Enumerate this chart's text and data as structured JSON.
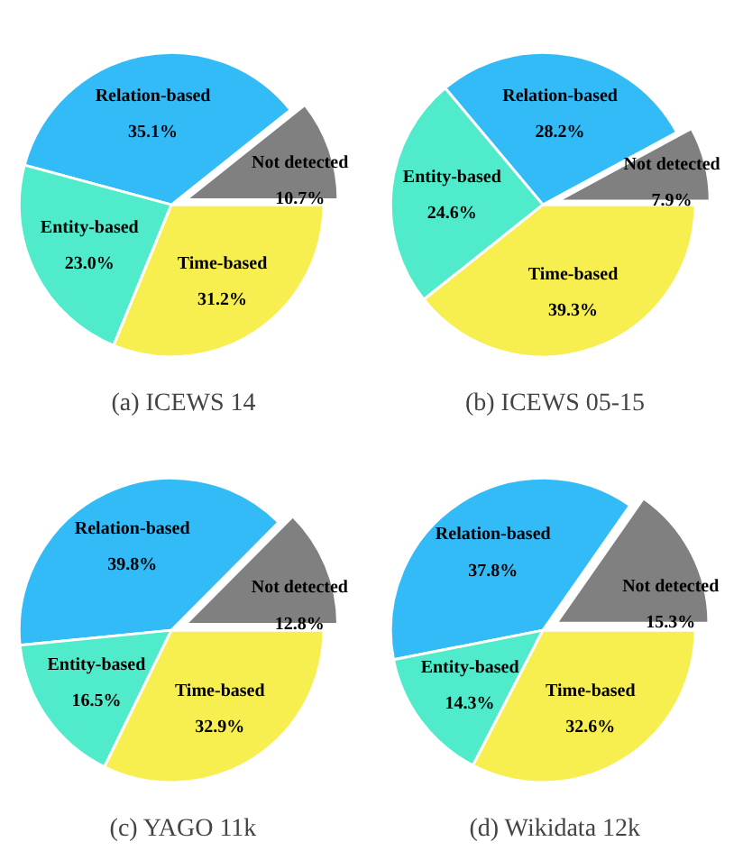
{
  "chart_data": [
    {
      "type": "pie",
      "title": "(a)  ICEWS 14",
      "categories": [
        "Not detected",
        "Relation-based",
        "Entity-based",
        "Time-based"
      ],
      "values": [
        10.7,
        35.1,
        23.0,
        31.2
      ],
      "value_labels": [
        "10.7%",
        "35.1%",
        "23.0%",
        "31.2%"
      ],
      "colors": [
        "#808080",
        "#33bbf7",
        "#50ebcb",
        "#f7ee50"
      ]
    },
    {
      "type": "pie",
      "title": "(b)  ICEWS 05-15",
      "categories": [
        "Not detected",
        "Relation-based",
        "Entity-based",
        "Time-based"
      ],
      "values": [
        7.9,
        28.2,
        24.6,
        39.3
      ],
      "value_labels": [
        "7.9%",
        "28.2%",
        "24.6%",
        "39.3%"
      ],
      "colors": [
        "#808080",
        "#33bbf7",
        "#50ebcb",
        "#f7ee50"
      ]
    },
    {
      "type": "pie",
      "title": "(c)  YAGO 11k",
      "categories": [
        "Not detected",
        "Relation-based",
        "Entity-based",
        "Time-based"
      ],
      "values": [
        12.8,
        39.8,
        16.5,
        32.9
      ],
      "value_labels": [
        "12.8%",
        "39.8%",
        "16.5%",
        "32.9%"
      ],
      "colors": [
        "#808080",
        "#33bbf7",
        "#50ebcb",
        "#f7ee50"
      ]
    },
    {
      "type": "pie",
      "title": "(d)  Wikidata 12k",
      "categories": [
        "Not detected",
        "Relation-based",
        "Entity-based",
        "Time-based"
      ],
      "values": [
        15.3,
        37.8,
        14.3,
        32.6
      ],
      "value_labels": [
        "15.3%",
        "37.8%",
        "14.3%",
        "32.6%"
      ],
      "colors": [
        "#808080",
        "#33bbf7",
        "#50ebcb",
        "#f7ee50"
      ]
    }
  ]
}
